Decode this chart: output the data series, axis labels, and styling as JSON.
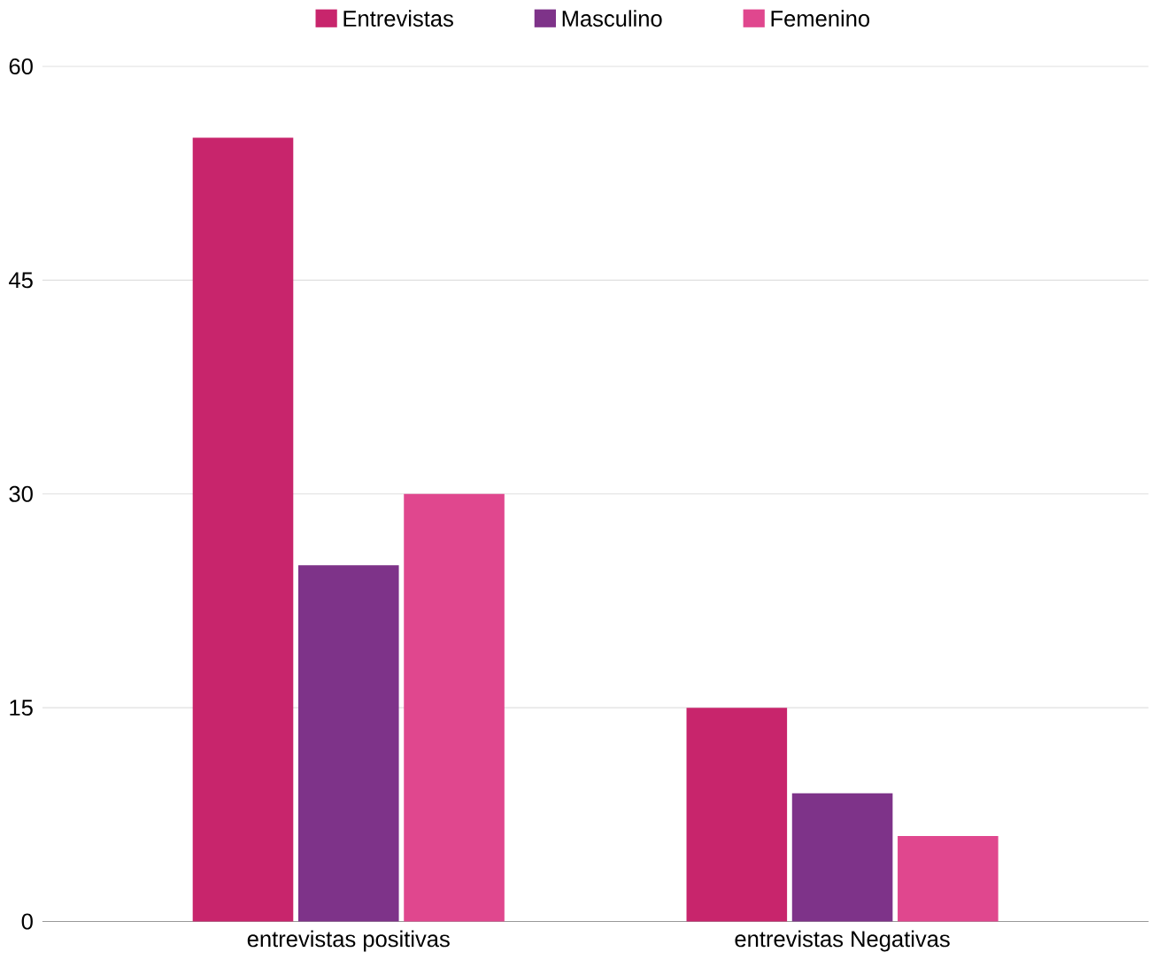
{
  "chart_data": {
    "type": "bar",
    "categories": [
      "entrevistas positivas",
      "entrevistas Negativas"
    ],
    "series": [
      {
        "name": "Entrevistas",
        "color": "#c8256c",
        "values": [
          55,
          15
        ]
      },
      {
        "name": "Masculino",
        "color": "#7e3389",
        "values": [
          25,
          9
        ]
      },
      {
        "name": "Femenino",
        "color": "#e0478e",
        "values": [
          30,
          6
        ]
      }
    ],
    "ylim": [
      0,
      60
    ],
    "yticks": [
      0,
      15,
      30,
      45,
      60
    ],
    "grid": "y",
    "legend": "top"
  }
}
